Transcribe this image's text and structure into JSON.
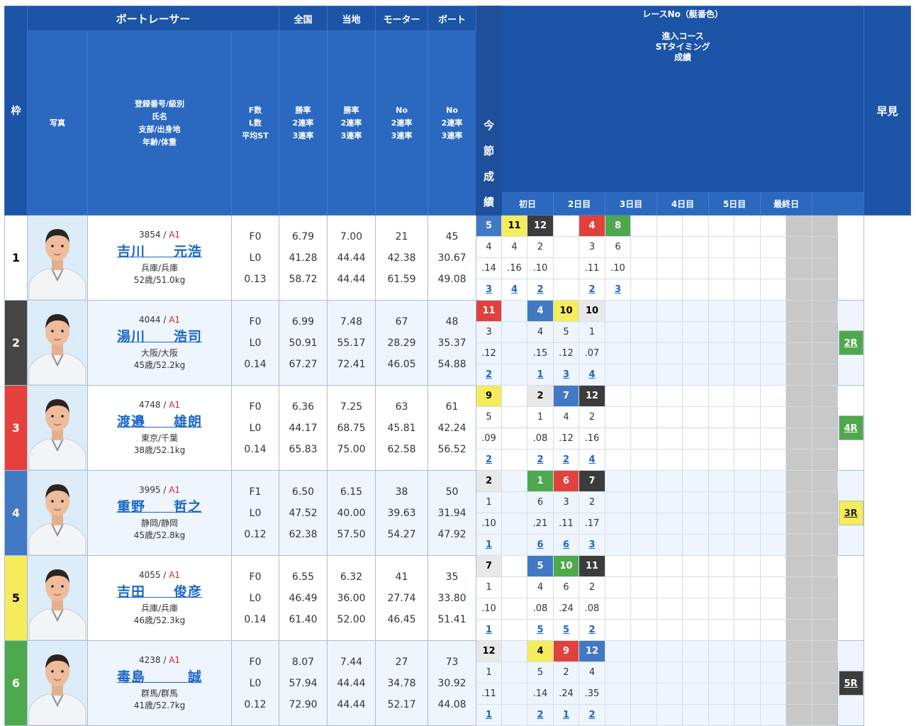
{
  "header": {
    "boatracer": "ボートレーサー",
    "waku": "枠",
    "photo": "写真",
    "reg_lines": [
      "登録番号/級別",
      "氏名",
      "支部/出身地",
      "年齢/体重"
    ],
    "fst_lines": [
      "F数",
      "L数",
      "平均ST"
    ],
    "national": "全国",
    "local": "当地",
    "motor": "モーター",
    "boat": "ボート",
    "rate_lines": [
      "勝率",
      "2連率",
      "3連率"
    ],
    "no_rate_lines": [
      "No",
      "2連率",
      "3連率"
    ],
    "race_title_lines": [
      "レースNo（艇番色）",
      "進入コース",
      "STタイミング",
      "成績"
    ],
    "days": [
      "初日",
      "2日目",
      "3日目",
      "4日目",
      "5日目",
      "最終日"
    ],
    "hayami": "早見",
    "konsetsu": [
      "今",
      "節",
      "成",
      "績"
    ]
  },
  "racers": [
    {
      "waku": "1",
      "reg": "3854",
      "class": "A1",
      "name": "吉川　　元浩",
      "branch": "兵庫/兵庫",
      "age_weight": "52歳/51.0kg",
      "f": "F0",
      "l": "L0",
      "st": "0.13",
      "nat": [
        "6.79",
        "41.28",
        "58.72"
      ],
      "loc": [
        "7.00",
        "44.44",
        "44.44"
      ],
      "motor": [
        "21",
        "42.38",
        "61.59"
      ],
      "boat": [
        "45",
        "30.67",
        "49.08"
      ],
      "races": [
        {
          "r": "5",
          "c": 4,
          "course": "4",
          "st": ".14",
          "res": "3"
        },
        {
          "r": "11",
          "c": 5,
          "course": "4",
          "st": ".16",
          "res": "4"
        },
        {
          "r": "12",
          "c": 2,
          "course": "2",
          "st": ".10",
          "res": "2"
        },
        {
          "r": "",
          "c": 0,
          "course": "",
          "st": "",
          "res": ""
        },
        {
          "r": "4",
          "c": 3,
          "course": "3",
          "st": ".11",
          "res": "2"
        },
        {
          "r": "8",
          "c": 6,
          "course": "6",
          "st": ".10",
          "res": "3"
        }
      ],
      "hayami": ""
    },
    {
      "waku": "2",
      "reg": "4044",
      "class": "A1",
      "name": "湯川　　浩司",
      "branch": "大阪/大阪",
      "age_weight": "45歳/52.2kg",
      "f": "F0",
      "l": "L0",
      "st": "0.14",
      "nat": [
        "6.99",
        "50.91",
        "67.27"
      ],
      "loc": [
        "7.48",
        "55.17",
        "72.41"
      ],
      "motor": [
        "67",
        "28.29",
        "46.05"
      ],
      "boat": [
        "48",
        "35.37",
        "54.88"
      ],
      "races": [
        {
          "r": "11",
          "c": 3,
          "course": "3",
          "st": ".12",
          "res": "2"
        },
        {
          "r": "",
          "c": 0,
          "course": "",
          "st": "",
          "res": ""
        },
        {
          "r": "4",
          "c": 4,
          "course": "4",
          "st": ".15",
          "res": "1"
        },
        {
          "r": "10",
          "c": 5,
          "course": "5",
          "st": ".12",
          "res": "3"
        },
        {
          "r": "10",
          "c": 7,
          "course": "1",
          "st": ".07",
          "res": "4"
        },
        {
          "r": "",
          "c": 0,
          "course": "",
          "st": "",
          "res": ""
        }
      ],
      "hayami": "2R",
      "hc": "g"
    },
    {
      "waku": "3",
      "reg": "4748",
      "class": "A1",
      "name": "渡邉　　雄朗",
      "branch": "東京/千葉",
      "age_weight": "38歳/52.1kg",
      "f": "F0",
      "l": "L0",
      "st": "0.14",
      "nat": [
        "6.36",
        "44.17",
        "65.83"
      ],
      "loc": [
        "7.25",
        "68.75",
        "75.00"
      ],
      "motor": [
        "63",
        "45.81",
        "62.58"
      ],
      "boat": [
        "61",
        "42.24",
        "56.52"
      ],
      "races": [
        {
          "r": "9",
          "c": 5,
          "course": "5",
          "st": ".09",
          "res": "2"
        },
        {
          "r": "",
          "c": 0,
          "course": "",
          "st": "",
          "res": ""
        },
        {
          "r": "2",
          "c": 7,
          "course": "1",
          "st": ".08",
          "res": "2"
        },
        {
          "r": "7",
          "c": 4,
          "course": "4",
          "st": ".12",
          "res": "2"
        },
        {
          "r": "12",
          "c": 2,
          "course": "2",
          "st": ".16",
          "res": "4"
        },
        {
          "r": "",
          "c": 0,
          "course": "",
          "st": "",
          "res": ""
        }
      ],
      "hayami": "4R",
      "hc": "g"
    },
    {
      "waku": "4",
      "reg": "3995",
      "class": "A1",
      "name": "重野　　哲之",
      "branch": "静岡/静岡",
      "age_weight": "45歳/52.8kg",
      "f": "F1",
      "l": "L0",
      "st": "0.12",
      "nat": [
        "6.50",
        "47.52",
        "62.38"
      ],
      "loc": [
        "6.15",
        "40.00",
        "57.50"
      ],
      "motor": [
        "38",
        "39.63",
        "54.27"
      ],
      "boat": [
        "50",
        "31.94",
        "47.92"
      ],
      "races": [
        {
          "r": "2",
          "c": 7,
          "course": "1",
          "st": ".10",
          "res": "1"
        },
        {
          "r": "",
          "c": 0,
          "course": "",
          "st": "",
          "res": ""
        },
        {
          "r": "1",
          "c": 6,
          "course": "6",
          "st": ".21",
          "res": "6"
        },
        {
          "r": "6",
          "c": 3,
          "course": "3",
          "st": ".11",
          "res": "6"
        },
        {
          "r": "7",
          "c": 2,
          "course": "2",
          "st": ".17",
          "res": "3"
        },
        {
          "r": "",
          "c": 0,
          "course": "",
          "st": "",
          "res": ""
        }
      ],
      "hayami": "3R",
      "hc": "y"
    },
    {
      "waku": "5",
      "reg": "4055",
      "class": "A1",
      "name": "吉田　　俊彦",
      "branch": "兵庫/兵庫",
      "age_weight": "46歳/52.3kg",
      "f": "F0",
      "l": "L0",
      "st": "0.14",
      "nat": [
        "6.55",
        "46.49",
        "61.40"
      ],
      "loc": [
        "6.32",
        "36.00",
        "52.00"
      ],
      "motor": [
        "41",
        "27.74",
        "46.45"
      ],
      "boat": [
        "35",
        "33.80",
        "51.41"
      ],
      "races": [
        {
          "r": "7",
          "c": 7,
          "course": "1",
          "st": ".10",
          "res": "1"
        },
        {
          "r": "",
          "c": 0,
          "course": "",
          "st": "",
          "res": ""
        },
        {
          "r": "5",
          "c": 4,
          "course": "4",
          "st": ".08",
          "res": "5"
        },
        {
          "r": "10",
          "c": 6,
          "course": "6",
          "st": ".24",
          "res": "5"
        },
        {
          "r": "11",
          "c": 2,
          "course": "2",
          "st": ".08",
          "res": "2"
        },
        {
          "r": "",
          "c": 0,
          "course": "",
          "st": "",
          "res": ""
        }
      ],
      "hayami": ""
    },
    {
      "waku": "6",
      "reg": "4238",
      "class": "A1",
      "name": "毒島　　　誠",
      "branch": "群馬/群馬",
      "age_weight": "41歳/52.7kg",
      "f": "F0",
      "l": "L0",
      "st": "0.12",
      "nat": [
        "8.07",
        "57.94",
        "72.90"
      ],
      "loc": [
        "7.44",
        "44.44",
        "44.44"
      ],
      "motor": [
        "27",
        "34.78",
        "52.17"
      ],
      "boat": [
        "73",
        "30.92",
        "44.08"
      ],
      "races": [
        {
          "r": "12",
          "c": 7,
          "course": "1",
          "st": ".11",
          "res": "1"
        },
        {
          "r": "",
          "c": 0,
          "course": "",
          "st": "",
          "res": ""
        },
        {
          "r": "4",
          "c": 5,
          "course": "5",
          "st": ".14",
          "res": "2"
        },
        {
          "r": "9",
          "c": 3,
          "course": "2",
          "st": ".24",
          "res": "1"
        },
        {
          "r": "12",
          "c": 4,
          "course": "4",
          "st": ".35",
          "res": "2"
        },
        {
          "r": "",
          "c": 0,
          "course": "",
          "st": "",
          "res": ""
        }
      ],
      "hayami": "5R",
      "hc": "k"
    }
  ]
}
